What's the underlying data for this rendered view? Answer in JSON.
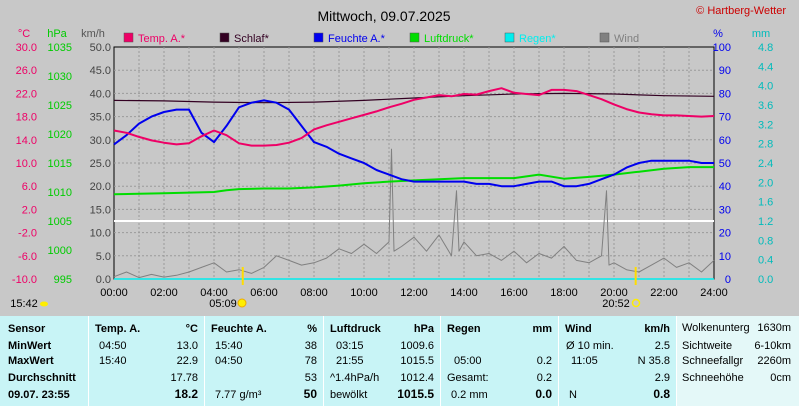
{
  "title": "Mittwoch, 09.07.2025",
  "copyright": "© Hartberg-Wetter",
  "colors": {
    "temp": "#ee0066",
    "schlaf": "#330022",
    "feuchte": "#0000ee",
    "luftdruck": "#00dd00",
    "regen": "#00eeee",
    "wind": "#808080",
    "plot_bg": "#c8c8c8",
    "grid": "#9a9a9a"
  },
  "axes": {
    "temp_unit": "°C",
    "temp_ticks": [
      "30.0",
      "26.0",
      "22.0",
      "18.0",
      "14.0",
      "10.0",
      "6.0",
      "2.0",
      "-2.0",
      "-6.0",
      "-10.0"
    ],
    "hpa_unit": "hPa",
    "hpa_ticks": [
      "1035",
      "1030",
      "1025",
      "1020",
      "1015",
      "1010",
      "1005",
      "1000",
      "995"
    ],
    "kmh_unit": "km/h",
    "kmh_ticks": [
      "50.0",
      "45.0",
      "40.0",
      "35.0",
      "30.0",
      "25.0",
      "20.0",
      "15.0",
      "10.0",
      "5.0",
      "0.0"
    ],
    "pct_unit": "%",
    "pct_ticks": [
      "100",
      "90",
      "80",
      "70",
      "60",
      "50",
      "40",
      "30",
      "20",
      "10",
      "0"
    ],
    "mm_unit": "mm",
    "mm_ticks": [
      "4.8",
      "4.4",
      "4.0",
      "3.6",
      "3.2",
      "2.8",
      "2.4",
      "2.0",
      "1.6",
      "1.2",
      "0.8",
      "0.4",
      "0.0"
    ],
    "x_ticks": [
      "00:00",
      "02:00",
      "04:00",
      "06:00",
      "08:00",
      "10:00",
      "12:00",
      "14:00",
      "16:00",
      "18:00",
      "20:00",
      "22:00",
      "24:00"
    ]
  },
  "legend": [
    {
      "label": "Temp. A.*",
      "color": "#ee0066"
    },
    {
      "label": "Schlaf*",
      "color": "#330022"
    },
    {
      "label": "Feuchte A.*",
      "color": "#0000ee"
    },
    {
      "label": "Luftdruck*",
      "color": "#00dd00"
    },
    {
      "label": "Regen*",
      "color": "#00eeee"
    },
    {
      "label": "Wind",
      "color": "#808080"
    }
  ],
  "sun": {
    "sunrise_label": "05:09",
    "sunset_label": "20:52",
    "current_time": "15:42"
  },
  "chart_data": {
    "type": "line",
    "title": "Mittwoch, 09.07.2025",
    "x_unit": "h",
    "xlim": [
      0,
      24
    ],
    "series": [
      {
        "name": "Temp. A.*",
        "axis": "°C",
        "ylim": [
          -10,
          30
        ],
        "x": [
          0,
          0.5,
          1,
          1.5,
          2,
          2.5,
          3,
          3.5,
          4,
          4.5,
          5,
          5.5,
          6,
          6.5,
          7,
          7.5,
          8,
          8.5,
          9,
          9.5,
          10,
          10.5,
          11,
          11.5,
          12,
          12.5,
          13,
          13.5,
          14,
          14.5,
          15,
          15.5,
          16,
          16.5,
          17,
          17.5,
          18,
          18.5,
          19,
          19.5,
          20,
          20.5,
          21,
          21.5,
          22,
          22.5,
          23,
          23.5,
          24
        ],
        "y": [
          15.6,
          15.2,
          14.5,
          13.9,
          13.5,
          13.2,
          13.4,
          14.6,
          15.6,
          14.8,
          13.4,
          13.0,
          13.0,
          13.1,
          13.5,
          14.3,
          15.8,
          16.5,
          17.1,
          17.7,
          18.3,
          18.9,
          19.6,
          20.2,
          20.9,
          21.3,
          21.7,
          21.5,
          21.9,
          21.8,
          22.4,
          22.9,
          22.1,
          21.9,
          21.7,
          22.6,
          22.6,
          22.4,
          21.7,
          21.0,
          20.1,
          19.3,
          18.7,
          18.4,
          18.2,
          18.2,
          18.1,
          18.0,
          18.1
        ]
      },
      {
        "name": "Schlaf*",
        "axis": "°C",
        "ylim": [
          -10,
          30
        ],
        "x": [
          0,
          2,
          4,
          6,
          8,
          10,
          12,
          14,
          16,
          18,
          20,
          22,
          24
        ],
        "y": [
          20.8,
          20.7,
          20.5,
          20.4,
          20.5,
          20.8,
          21.2,
          21.6,
          21.9,
          22.0,
          21.9,
          21.6,
          21.5
        ]
      },
      {
        "name": "Feuchte A.*",
        "axis": "%",
        "ylim": [
          0,
          100
        ],
        "x": [
          0,
          0.5,
          1,
          1.5,
          2,
          2.5,
          3,
          3.5,
          4,
          4.5,
          5,
          5.5,
          6,
          6.5,
          7,
          7.5,
          8,
          8.5,
          9,
          9.5,
          10,
          10.5,
          11,
          11.5,
          12,
          12.5,
          13,
          13.5,
          14,
          14.5,
          15,
          15.5,
          16,
          16.5,
          17,
          17.5,
          18,
          18.5,
          19,
          19.5,
          20,
          20.5,
          21,
          21.5,
          22,
          22.5,
          23,
          23.5,
          24
        ],
        "y": [
          58,
          62,
          67,
          70,
          72,
          73,
          73,
          63,
          59,
          66,
          74,
          76,
          77,
          76,
          73,
          66,
          59,
          57,
          54,
          52,
          50,
          47,
          45,
          43,
          42,
          42,
          42,
          42,
          42,
          41,
          41,
          40,
          40,
          41,
          42,
          42,
          40,
          40,
          41,
          43,
          45,
          48,
          50,
          51,
          51,
          51,
          51,
          50,
          50
        ]
      },
      {
        "name": "Luftdruck*",
        "axis": "hPa",
        "ylim": [
          995,
          1035
        ],
        "x": [
          0,
          1,
          2,
          3,
          4,
          4.5,
          5,
          6,
          7,
          8,
          9,
          10,
          11,
          12,
          13,
          14,
          15,
          16,
          17,
          18,
          19,
          20,
          21,
          22,
          23,
          24
        ],
        "y": [
          1009.6,
          1009.7,
          1009.8,
          1009.9,
          1010.0,
          1010.3,
          1010.5,
          1010.6,
          1010.6,
          1010.8,
          1011.1,
          1011.5,
          1011.8,
          1012.0,
          1012.2,
          1012.4,
          1012.4,
          1012.4,
          1013.0,
          1012.3,
          1012.6,
          1013.0,
          1013.5,
          1014.0,
          1014.3,
          1014.3
        ]
      },
      {
        "name": "Wind",
        "axis": "km/h",
        "ylim": [
          0,
          50
        ],
        "x": [
          0,
          0.5,
          1,
          1.5,
          2,
          2.5,
          3,
          3.5,
          4,
          4.5,
          5,
          5.5,
          6,
          6.5,
          7,
          7.5,
          8,
          8.5,
          9,
          9.5,
          10,
          10.5,
          11,
          11.1,
          11.2,
          11.5,
          12,
          12.5,
          13,
          13.5,
          13.7,
          13.8,
          14,
          14.5,
          15,
          15.5,
          16,
          16.5,
          17,
          17.5,
          18,
          18.5,
          19,
          19.5,
          19.7,
          19.8,
          20,
          20.5,
          21,
          21.5,
          22,
          22.5,
          23,
          23.5,
          24
        ],
        "y": [
          0.5,
          1.5,
          0.3,
          1.0,
          0.4,
          0.8,
          1.5,
          2.5,
          3.5,
          1.5,
          2.0,
          1.2,
          2.5,
          5.0,
          4.0,
          3.0,
          3.5,
          4.5,
          6.5,
          5.5,
          7.5,
          5.5,
          8.0,
          28.0,
          6.0,
          7.0,
          9.0,
          6.0,
          9.5,
          5.0,
          19.0,
          6.0,
          8.0,
          5.0,
          5.5,
          4.0,
          6.0,
          3.5,
          5.5,
          4.5,
          7.0,
          4.0,
          3.5,
          5.0,
          19.0,
          3.0,
          3.5,
          2.0,
          1.5,
          3.0,
          4.5,
          2.5,
          3.5,
          1.5,
          4.0
        ]
      },
      {
        "name": "Regen*",
        "axis": "mm",
        "ylim": [
          0,
          5
        ],
        "x": [
          0,
          24
        ],
        "y": [
          0,
          0
        ]
      }
    ]
  },
  "table": {
    "sensor": {
      "header": "Sensor",
      "rows": [
        "MinWert",
        "MaxWert",
        "Durchschnitt",
        "09.07.  23:55"
      ]
    },
    "temp": {
      "header": "Temp. A.",
      "unit": "°C",
      "min_time": "04:50",
      "min": "13.0",
      "max_time": "15:40",
      "max": "22.9",
      "avg": "17.78",
      "current": "18.2"
    },
    "feuchte": {
      "header": "Feuchte A.",
      "unit": "%",
      "min_time": "15:40",
      "min": "38",
      "max_time": "04:50",
      "max": "78",
      "avg": "53",
      "abs": "7.77 g/m³",
      "current": "50"
    },
    "luftdruck": {
      "header": "Luftdruck",
      "unit": "hPa",
      "min_time": "03:15",
      "min": "1009.6",
      "max_time": "21:55",
      "max": "1015.5",
      "trend_label": "^1.4hPa/h",
      "trend_val": "1012.4",
      "sky": "bewölkt",
      "current": "1015.5"
    },
    "regen": {
      "header": "Regen",
      "unit": "mm",
      "max_time": "05:00",
      "max": "0.2",
      "total_label": "Gesamt:",
      "total": "0.2",
      "last_label": "0.2 mm",
      "current": "0.0"
    },
    "wind": {
      "header": "Wind",
      "unit": "km/h",
      "min_label": "Ø 10 min.",
      "min": "2.5",
      "max_time": "11:05",
      "max": "N 35.8",
      "avg": "2.9",
      "dir": "N",
      "current": "0.8"
    },
    "wolken": [
      {
        "label": "Wolkenunterg",
        "value": "1630m"
      },
      {
        "label": "Sichtweite",
        "value": "6-10km"
      },
      {
        "label": "Schneefallgr",
        "value": "2260m"
      },
      {
        "label": "Schneehöhe",
        "value": "0cm"
      }
    ]
  }
}
